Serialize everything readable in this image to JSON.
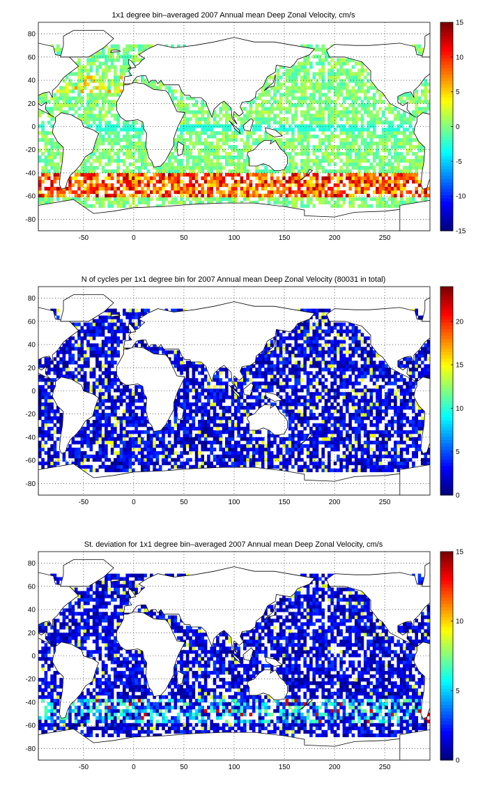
{
  "figure": {
    "background": "#ffffff",
    "land_color": "#ffffff",
    "coastline_color": "#000000",
    "grid_color": "#000000",
    "colormap": "jet"
  },
  "chart_data": [
    {
      "type": "heatmap",
      "title": "1x1 degree bin–averaged 2007 Annual mean Deep Zonal Velocity, cm/s",
      "xlabel": "",
      "ylabel": "",
      "xlim": [
        -95,
        295
      ],
      "ylim": [
        -90,
        90
      ],
      "xticks": [
        -50,
        0,
        50,
        100,
        150,
        200,
        250
      ],
      "yticks": [
        -80,
        -60,
        -40,
        -20,
        0,
        20,
        40,
        60,
        80
      ],
      "grid": true,
      "colorbar": {
        "min": -15,
        "max": 15,
        "ticks": [
          -15,
          -10,
          -5,
          0,
          5,
          10,
          15
        ]
      },
      "field": "zonal_velocity"
    },
    {
      "type": "heatmap",
      "title": "N of cycles per 1x1 degree bin for 2007 Annual mean Deep Zonal Velocity (80031 in total)",
      "xlabel": "",
      "ylabel": "",
      "xlim": [
        -95,
        295
      ],
      "ylim": [
        -90,
        90
      ],
      "xticks": [
        -50,
        0,
        50,
        100,
        150,
        200,
        250
      ],
      "yticks": [
        -80,
        -60,
        -40,
        -20,
        0,
        20,
        40,
        60,
        80
      ],
      "grid": true,
      "colorbar": {
        "min": 0,
        "max": 24,
        "ticks": [
          0,
          5,
          10,
          15,
          20
        ]
      },
      "field": "cycle_count"
    },
    {
      "type": "heatmap",
      "title": "St. deviation for 1x1 degree bin–averaged 2007 Annual mean Deep Zonal Velocity, cm/s",
      "xlabel": "",
      "ylabel": "",
      "xlim": [
        -95,
        295
      ],
      "ylim": [
        -90,
        90
      ],
      "xticks": [
        -50,
        0,
        50,
        100,
        150,
        200,
        250
      ],
      "yticks": [
        -80,
        -60,
        -40,
        -20,
        0,
        20,
        40,
        60,
        80
      ],
      "grid": true,
      "colorbar": {
        "min": 0,
        "max": 15,
        "ticks": [
          0,
          5,
          10,
          15
        ]
      },
      "field": "velocity_std"
    }
  ]
}
